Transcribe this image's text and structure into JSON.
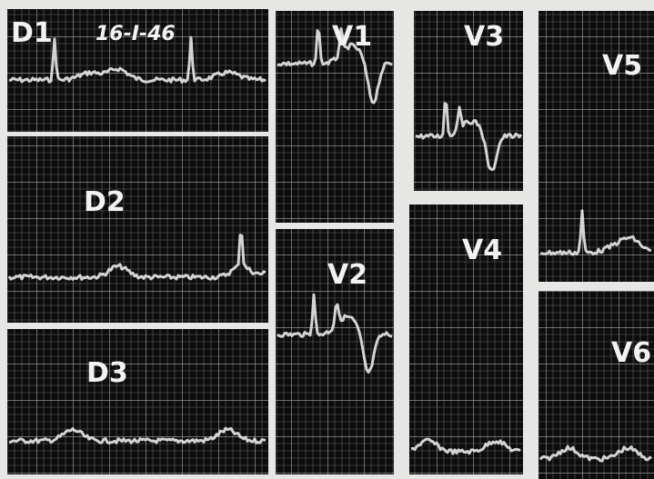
{
  "date": "16-I-46",
  "leads": [
    {
      "label": "D1"
    },
    {
      "label": "D2"
    },
    {
      "label": "D3"
    },
    {
      "label": "V1"
    },
    {
      "label": "V2"
    },
    {
      "label": "V3"
    },
    {
      "label": "V4"
    },
    {
      "label": "V5"
    },
    {
      "label": "V6"
    }
  ]
}
